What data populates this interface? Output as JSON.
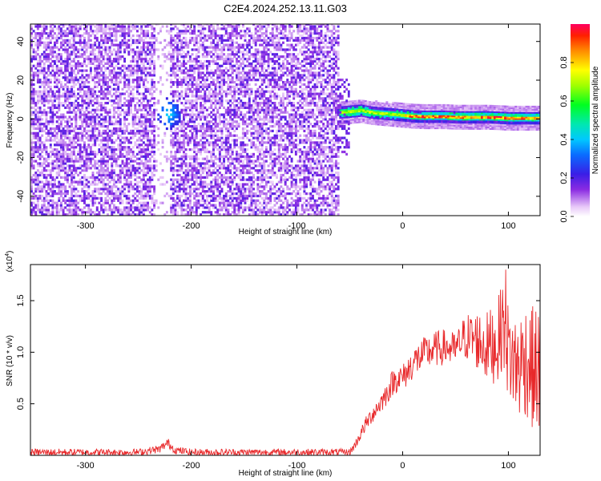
{
  "title": "C2E4.2024.252.13.11.G03",
  "chart_data": [
    {
      "type": "heatmap",
      "xlabel": "Height of straight line (km)",
      "ylabel": "Frequency (Hz)",
      "xlim": [
        -352,
        130
      ],
      "ylim": [
        -50,
        49
      ],
      "xticks": [
        -300,
        -200,
        -100,
        0,
        100
      ],
      "yticks": [
        -40,
        -20,
        0,
        20,
        40
      ],
      "colorbar": {
        "label": "Normalized spectral amplitude",
        "range": [
          0,
          1
        ],
        "ticks": [
          0.0,
          0.2,
          0.4,
          0.6,
          0.8
        ],
        "colormap": "rainbow: white (low) - purple - blue - cyan - green - yellow - red (high)"
      },
      "features": [
        {
          "x_range": [
            -352,
            -60
          ],
          "description": "scattered low-amplitude noise (purple speckle) across all frequencies"
        },
        {
          "x_range": [
            -235,
            -220
          ],
          "description": "gap with little noise"
        },
        {
          "x": -222,
          "y": 2,
          "description": "localized blob reaching blue/cyan amplitude near 0 Hz"
        },
        {
          "x_range": [
            -60,
            130
          ],
          "description": "narrow band near 0 Hz, 2 to 4 Hz around x=-50 decreasing to about 0 Hz, amplitude green to red"
        }
      ],
      "band_centerline": {
        "x": [
          -60,
          -50,
          -40,
          -30,
          -20,
          -10,
          0,
          10,
          20,
          30,
          40,
          50,
          60,
          70,
          80,
          90,
          100,
          110,
          120,
          130
        ],
        "y": [
          3,
          3.5,
          4,
          3,
          2.5,
          2,
          1.5,
          1,
          0.8,
          0.8,
          0.8,
          0.5,
          0.5,
          0.5,
          0.5,
          0.3,
          0,
          0,
          0,
          0
        ]
      }
    },
    {
      "type": "line",
      "xlabel": "Height of straight line (km)",
      "ylabel": "SNR (10 * v/v)",
      "yscale_label": "(x10",
      "yscale_exponent": "4",
      "yscale_suffix": ")",
      "xlim": [
        -352,
        130
      ],
      "ylim": [
        0,
        1.85
      ],
      "xticks": [
        -300,
        -200,
        -100,
        0,
        100
      ],
      "yticks": [
        0.5,
        1.0,
        1.5
      ],
      "ytick_labels": [
        "0.5",
        "1.0",
        "1.5"
      ],
      "color": "#e8282a",
      "series": [
        {
          "x": [
            -352,
            -300,
            -250,
            -230,
            -222,
            -215,
            -200,
            -150,
            -100,
            -60,
            -50,
            -45,
            -40,
            -35,
            -30,
            -25,
            -20,
            -15,
            -10,
            -5,
            0,
            5,
            10,
            20,
            30,
            40,
            50,
            55,
            60,
            70,
            80,
            90,
            95,
            100,
            105,
            110,
            115,
            120,
            125,
            130
          ],
          "y": [
            0.03,
            0.03,
            0.03,
            0.06,
            0.12,
            0.05,
            0.03,
            0.03,
            0.03,
            0.03,
            0.03,
            0.1,
            0.2,
            0.3,
            0.38,
            0.45,
            0.52,
            0.6,
            0.7,
            0.75,
            0.75,
            0.82,
            0.9,
            0.98,
            1.03,
            1.05,
            1.02,
            1.1,
            1.15,
            1.12,
            1.05,
            1.1,
            1.3,
            1.0,
            0.9,
            0.85,
            0.95,
            0.9,
            0.8,
            0.85
          ]
        }
      ]
    }
  ]
}
